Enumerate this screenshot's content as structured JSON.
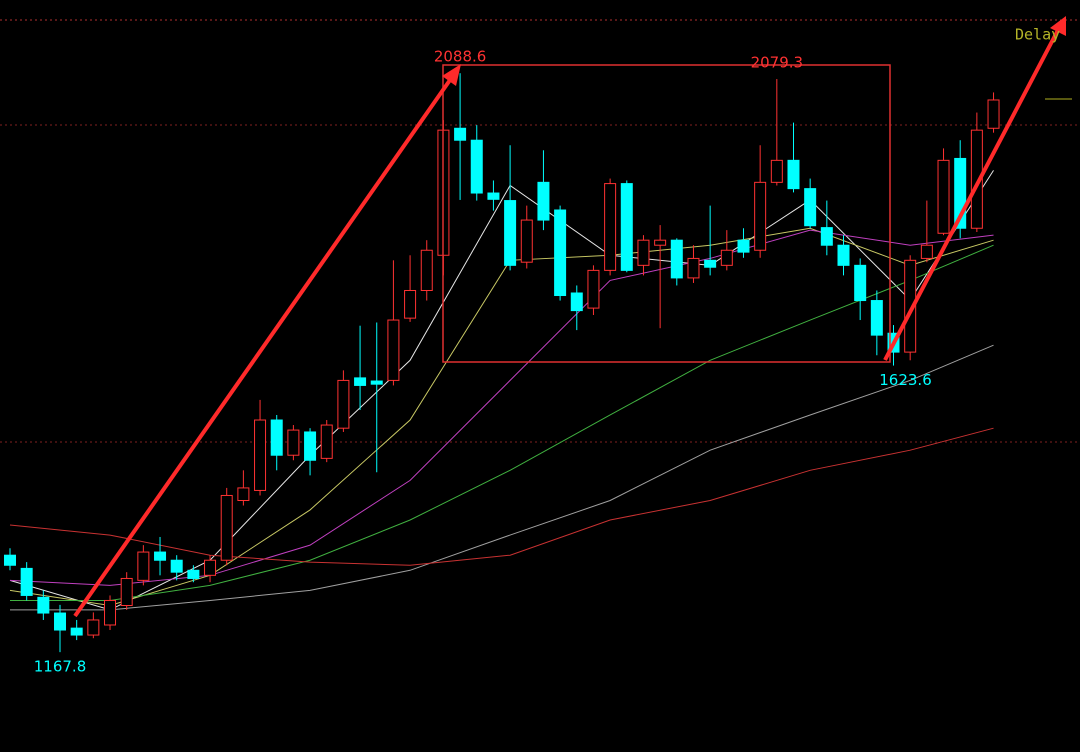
{
  "chart_data": {
    "type": "candlestick",
    "delay_label": "Delay",
    "ylim": [
      1009,
      2205
    ],
    "up_color": "#ff3232",
    "down_color": "#00ffff",
    "candles": {
      "open": [
        1322,
        1301,
        1255,
        1230,
        1206,
        1195,
        1211,
        1242,
        1282,
        1327,
        1314,
        1298,
        1290,
        1314,
        1409,
        1425,
        1537,
        1481,
        1518,
        1476,
        1524,
        1604,
        1599,
        1600,
        1699,
        1743,
        1799,
        2001,
        1982,
        1898,
        1886,
        1788,
        1915,
        1871,
        1739,
        1715,
        1775,
        1913,
        1783,
        1815,
        1823,
        1763,
        1791,
        1783,
        1823,
        1807,
        1915,
        1950,
        1905,
        1843,
        1815,
        1783,
        1727,
        1675,
        1645,
        1794,
        1834,
        1953,
        1842,
        2001
      ],
      "high": [
        1333,
        1311,
        1266,
        1243,
        1219,
        1231,
        1258,
        1295,
        1338,
        1351,
        1322,
        1306,
        1322,
        1429,
        1457,
        1569,
        1545,
        1529,
        1524,
        1537,
        1616,
        1687,
        1692,
        1791,
        1799,
        1823,
        2014,
        2088.6,
        2006,
        1918,
        1974,
        1878,
        1966,
        1878,
        1751,
        1783,
        1921,
        1918,
        1831,
        1847,
        1826,
        1815,
        1878,
        1839,
        1842,
        1974,
        2079.3,
        2010,
        1921,
        1886,
        1831,
        1794,
        1743,
        1688,
        1799,
        1886,
        1969,
        1982,
        2026,
        2058
      ],
      "low": [
        1298,
        1250,
        1219,
        1167.8,
        1187,
        1190,
        1203,
        1235,
        1274,
        1290,
        1282,
        1279,
        1279,
        1306,
        1401,
        1417,
        1457,
        1473,
        1449,
        1470,
        1518,
        1553,
        1454,
        1592,
        1693,
        1727,
        1767,
        1887,
        1886,
        1870,
        1775,
        1778,
        1839,
        1727,
        1680,
        1704,
        1767,
        1772,
        1767,
        1683,
        1751,
        1755,
        1767,
        1775,
        1795,
        1795,
        1910,
        1899,
        1842,
        1799,
        1767,
        1696,
        1640,
        1623.6,
        1632,
        1788,
        1831,
        1826,
        1836,
        1994
      ],
      "close": [
        1306,
        1258,
        1230,
        1203,
        1195,
        1219,
        1250,
        1285,
        1327,
        1314,
        1295,
        1285,
        1314,
        1417,
        1429,
        1537,
        1481,
        1521,
        1473,
        1529,
        1600,
        1592,
        1594,
        1696,
        1743,
        1807,
        1998,
        1982,
        1898,
        1888,
        1783,
        1855,
        1855,
        1735,
        1711,
        1775,
        1913,
        1775,
        1823,
        1823,
        1763,
        1794,
        1780,
        1807,
        1804,
        1915,
        1950,
        1905,
        1846,
        1815,
        1783,
        1727,
        1672,
        1645,
        1791,
        1815,
        1950,
        1842,
        1998,
        2046
      ]
    },
    "ma_x": [
      0,
      6,
      12,
      18,
      24,
      30,
      36,
      42,
      48,
      54,
      59
    ],
    "moving_averages": [
      {
        "color": "#e6e6e6",
        "values": [
          1282,
          1235,
          1314,
          1481,
          1632,
          1910,
          1799,
          1783,
          1887,
          1728,
          1934
        ]
      },
      {
        "color": "#c8c864",
        "values": [
          1266,
          1242,
          1290,
          1394,
          1537,
          1791,
          1799,
          1815,
          1842,
          1783,
          1823
        ]
      },
      {
        "color": "#c040c0",
        "values": [
          1282,
          1274,
          1290,
          1338,
          1441,
          1600,
          1759,
          1794,
          1839,
          1815,
          1831
        ]
      },
      {
        "color": "#40b040",
        "values": [
          1250,
          1250,
          1274,
          1314,
          1378,
          1457,
          1545,
          1632,
          1696,
          1759,
          1815
        ]
      },
      {
        "color": "#a0a0a0",
        "values": [
          1235,
          1235,
          1250,
          1266,
          1298,
          1354,
          1409,
          1489,
          1545,
          1600,
          1656
        ]
      },
      {
        "color": "#c83232",
        "values": [
          1370,
          1354,
          1322,
          1311,
          1306,
          1322,
          1378,
          1409,
          1457,
          1489,
          1524
        ]
      }
    ]
  }
}
